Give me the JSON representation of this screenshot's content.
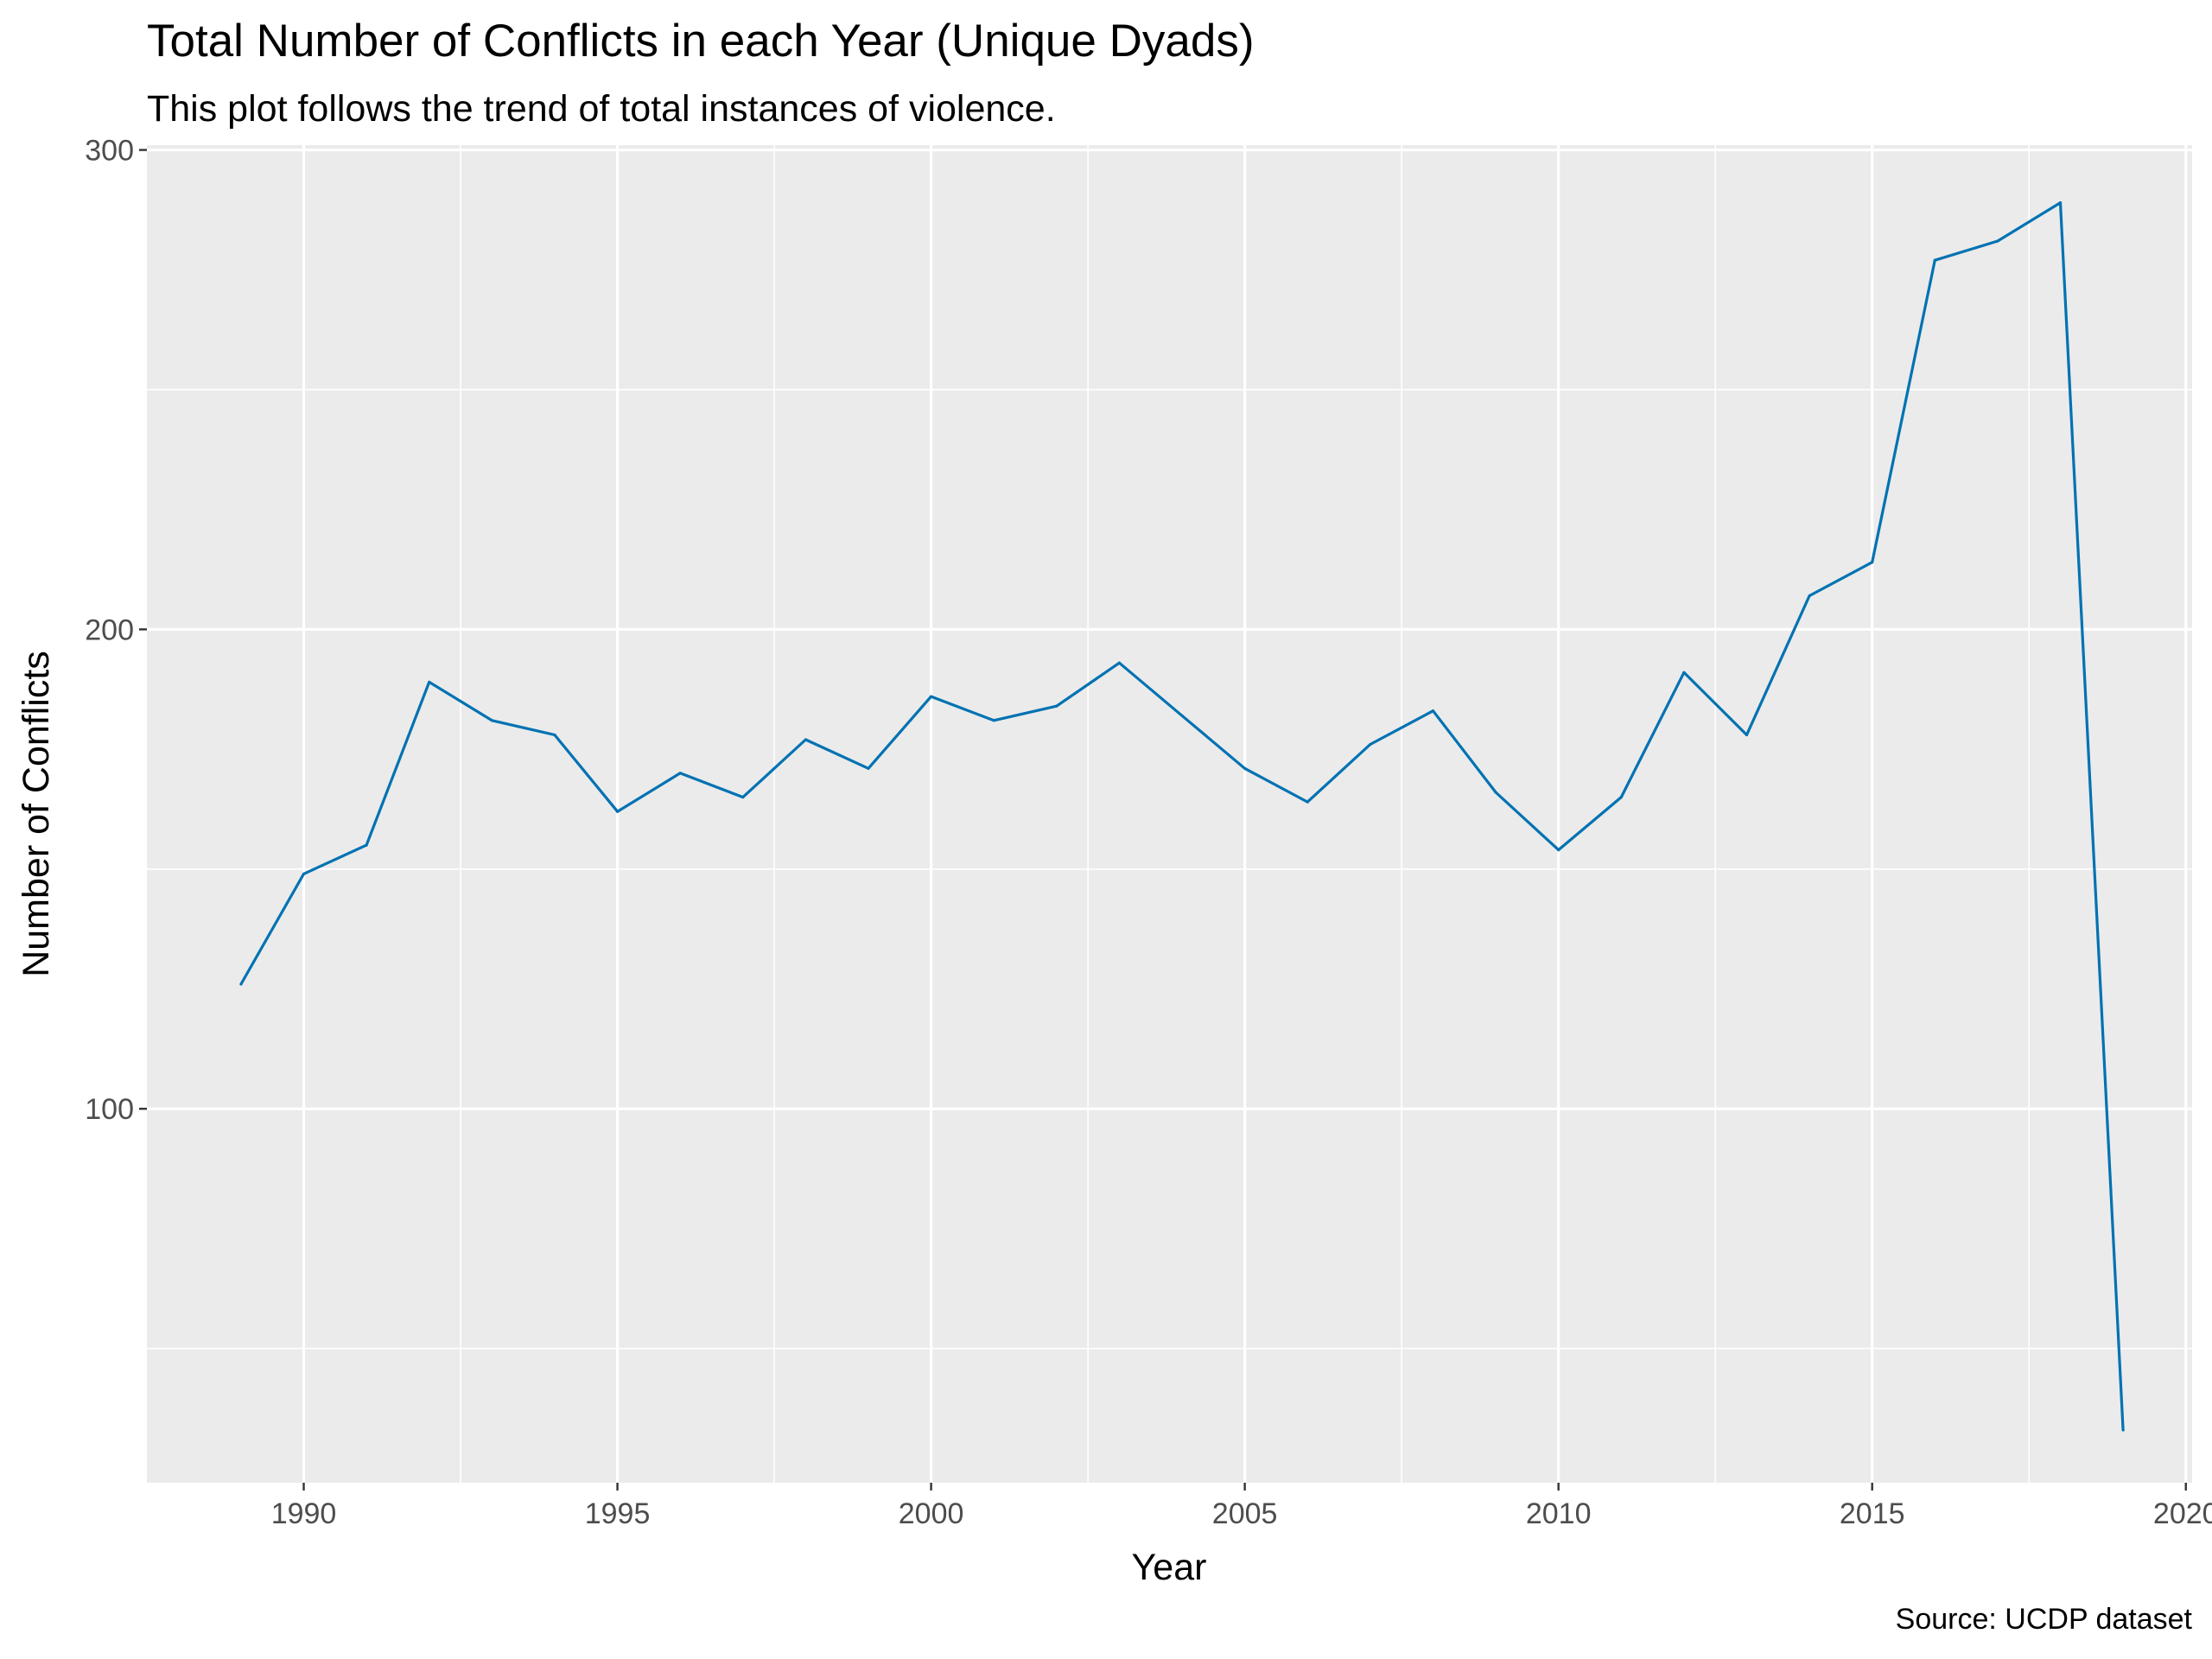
{
  "chart_data": {
    "type": "line",
    "title": "Total Number of Conflicts in each Year (Unique Dyads)",
    "subtitle": "This plot follows the trend of total instances of violence.",
    "xlabel": "Year",
    "ylabel": "Number of Conflicts",
    "caption": "Source: UCDP dataset",
    "xlim": [
      1987.5,
      2020.1
    ],
    "ylim": [
      22,
      301
    ],
    "x_ticks": [
      1990,
      1995,
      2000,
      2005,
      2010,
      2015,
      2020
    ],
    "y_ticks": [
      100,
      200,
      300
    ],
    "grid": true,
    "legend": "none",
    "line_color": "#0072B2",
    "panel_background": "#EBEBEB",
    "grid_color": "#FFFFFF",
    "series": [
      {
        "x": [
          1989,
          1990,
          1991,
          1992,
          1993,
          1994,
          1995,
          1996,
          1997,
          1998,
          1999,
          2000,
          2001,
          2002,
          2003,
          2004,
          2005,
          2006,
          2007,
          2008,
          2009,
          2010,
          2011,
          2012,
          2013,
          2014,
          2015,
          2016,
          2017,
          2018,
          2019
        ],
        "values": [
          126,
          149,
          155,
          189,
          181,
          178,
          162,
          170,
          165,
          177,
          171,
          186,
          181,
          184,
          193,
          182,
          171,
          164,
          176,
          183,
          166,
          154,
          165,
          191,
          178,
          207,
          214,
          277,
          281,
          289,
          33
        ]
      }
    ]
  }
}
